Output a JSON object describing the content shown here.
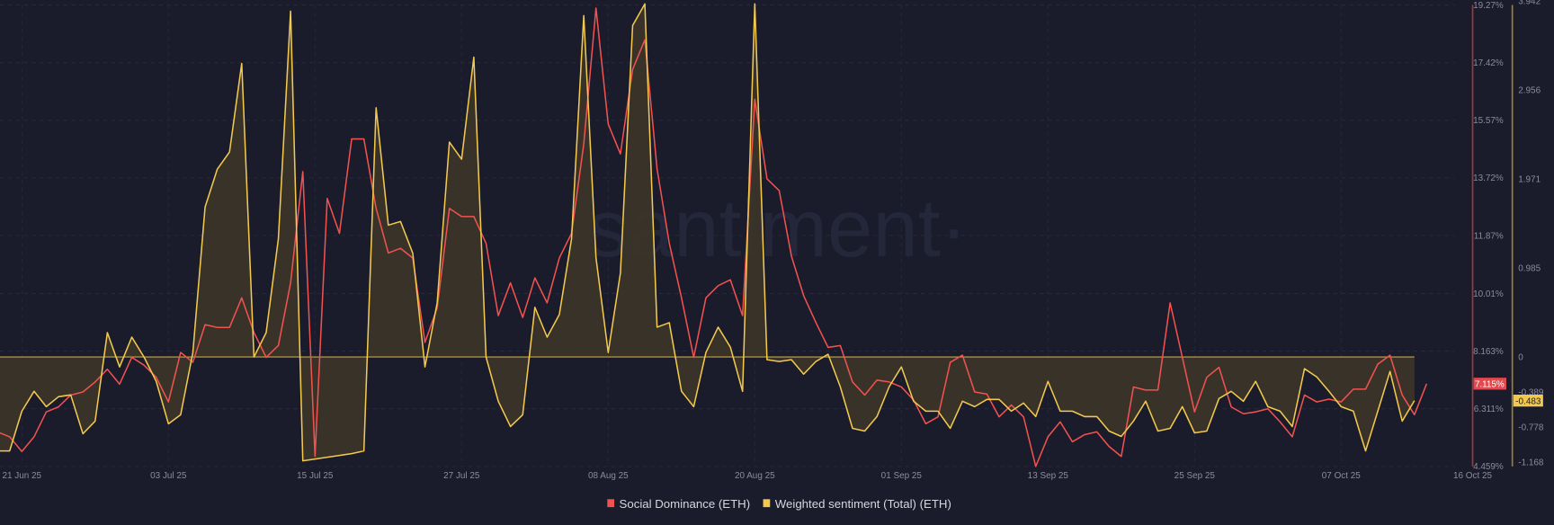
{
  "chart_data": {
    "type": "line",
    "watermark": "·santiment·",
    "start_date": "2025-06-19",
    "interval_days": 1,
    "x_tick_labels": [
      {
        "label": "21 Jun 25",
        "day": 2
      },
      {
        "label": "03 Jul 25",
        "day": 14
      },
      {
        "label": "15 Jul 25",
        "day": 26
      },
      {
        "label": "27 Jul 25",
        "day": 38
      },
      {
        "label": "08 Aug 25",
        "day": 50
      },
      {
        "label": "20 Aug 25",
        "day": 62
      },
      {
        "label": "01 Sep 25",
        "day": 74
      },
      {
        "label": "13 Sep 25",
        "day": 86
      },
      {
        "label": "25 Sep 25",
        "day": 98
      },
      {
        "label": "07 Oct 25",
        "day": 110
      },
      {
        "label": "16 Oct 25",
        "day": 119
      }
    ],
    "legend_position": "bottom-center",
    "series": [
      {
        "name": "Social Dominance (ETH)",
        "color": "#f0524f",
        "axis": "right-1",
        "unit": "%",
        "ylim": [
          4.459,
          19.27
        ],
        "tick_labels": [
          "19.27%",
          "17.42%",
          "15.57%",
          "13.72%",
          "11.87%",
          "10.01%",
          "8.163%",
          "6.311%",
          "4.459%"
        ],
        "tick_values": [
          19.27,
          17.42,
          15.57,
          13.72,
          11.87,
          10.01,
          8.163,
          6.311,
          4.459
        ],
        "current_label": "7.115%",
        "current_value": 7.115,
        "values": [
          5.57,
          5.41,
          4.94,
          5.41,
          6.21,
          6.37,
          6.75,
          6.85,
          7.17,
          7.58,
          7.1,
          7.96,
          7.71,
          7.32,
          6.53,
          8.12,
          7.8,
          9.01,
          8.92,
          8.92,
          9.87,
          8.76,
          7.96,
          8.34,
          10.35,
          13.92,
          4.78,
          13.06,
          11.94,
          14.97,
          14.97,
          12.74,
          11.31,
          11.46,
          11.15,
          8.44,
          9.55,
          12.74,
          12.48,
          12.48,
          11.62,
          9.3,
          10.35,
          9.24,
          10.51,
          9.71,
          11.15,
          11.94,
          14.81,
          19.17,
          15.45,
          14.49,
          17.2,
          18.15,
          14.01,
          11.62,
          9.87,
          7.96,
          9.87,
          10.26,
          10.45,
          9.3,
          16.24,
          13.69,
          13.31,
          11.21,
          9.94,
          9.08,
          8.28,
          8.34,
          7.17,
          6.75,
          7.23,
          7.17,
          7.01,
          6.59,
          5.83,
          6.05,
          7.8,
          8.03,
          6.85,
          6.78,
          6.05,
          6.43,
          6.05,
          4.46,
          5.41,
          5.89,
          5.25,
          5.48,
          5.57,
          5.1,
          4.78,
          7.01,
          6.91,
          6.91,
          9.71,
          7.96,
          6.21,
          7.32,
          7.64,
          6.37,
          6.15,
          6.21,
          6.31,
          5.89,
          5.41,
          6.75,
          6.53,
          6.62,
          6.53,
          6.94,
          6.94,
          7.74,
          8.03,
          6.75,
          6.12,
          7.115
        ]
      },
      {
        "name": "Weighted sentiment (Total) (ETH)",
        "color": "#f2c94c",
        "axis": "right-2",
        "ylim": [
          -1.168,
          3.942
        ],
        "tick_labels": [
          "3.942",
          "2.956",
          "1.971",
          "0.985",
          "0",
          "-0.389",
          "-0.778",
          "-1.168"
        ],
        "tick_values": [
          3.942,
          2.956,
          1.971,
          0.985,
          0,
          -0.389,
          -0.778,
          -1.168
        ],
        "current_label": "-0.483",
        "current_value": -0.483,
        "values": [
          -1.04,
          -1.04,
          -0.6,
          -0.38,
          -0.55,
          -0.44,
          -0.42,
          -0.85,
          -0.71,
          0.27,
          -0.11,
          0.22,
          0,
          -0.27,
          -0.74,
          -0.64,
          0.05,
          1.66,
          2.08,
          2.27,
          3.25,
          0,
          0.27,
          1.31,
          3.83,
          -1.15,
          -1.13,
          -1.11,
          -1.09,
          -1.07,
          -1.04,
          2.76,
          1.46,
          1.5,
          1.15,
          -0.11,
          0.6,
          2.38,
          2.19,
          3.32,
          0,
          -0.49,
          -0.77,
          -0.64,
          0.55,
          0.22,
          0.47,
          1.31,
          3.78,
          1.1,
          0.05,
          0.93,
          3.67,
          3.91,
          0.33,
          0.38,
          -0.38,
          -0.55,
          0.05,
          0.33,
          0.11,
          -0.38,
          3.91,
          -0.03,
          -0.05,
          -0.03,
          -0.19,
          -0.05,
          0.03,
          -0.33,
          -0.79,
          -0.82,
          -0.66,
          -0.33,
          -0.11,
          -0.49,
          -0.6,
          -0.6,
          -0.79,
          -0.49,
          -0.55,
          -0.47,
          -0.47,
          -0.6,
          -0.51,
          -0.66,
          -0.27,
          -0.6,
          -0.6,
          -0.66,
          -0.66,
          -0.82,
          -0.88,
          -0.71,
          -0.49,
          -0.82,
          -0.79,
          -0.55,
          -0.84,
          -0.82,
          -0.46,
          -0.38,
          -0.49,
          -0.27,
          -0.55,
          -0.6,
          -0.77,
          -0.13,
          -0.22,
          -0.38,
          -0.55,
          -0.6,
          -1.04,
          -0.6,
          -0.16,
          -0.71,
          -0.483
        ]
      }
    ]
  }
}
